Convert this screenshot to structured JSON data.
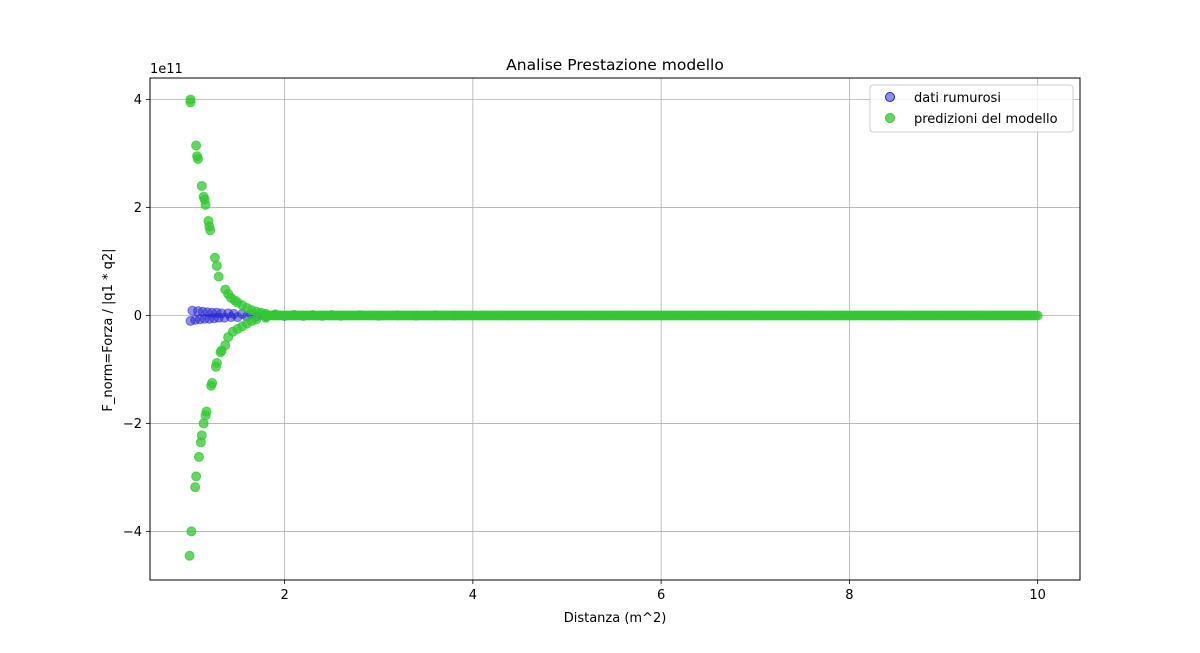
{
  "chart_data": {
    "type": "scatter",
    "title": "Analise Prestazione modello",
    "xlabel": "Distanza (m^2)",
    "ylabel": "F_norm=Forza / |q1 * q2|",
    "y_offset_label": "1e11",
    "xlim": [
      0.57,
      10.45
    ],
    "ylim": [
      -490000000000.0,
      440000000000.0
    ],
    "x_ticks": [
      2,
      4,
      6,
      8,
      10
    ],
    "x_tick_labels": [
      "2",
      "4",
      "6",
      "8",
      "10"
    ],
    "y_ticks": [
      -400000000000.0,
      -200000000000.0,
      0,
      200000000000.0,
      400000000000.0
    ],
    "y_tick_labels": [
      "−4",
      "−2",
      "0",
      "2",
      "4"
    ],
    "grid": true,
    "legend_position": "top-right",
    "series": [
      {
        "name": "dati rumurosi",
        "color": "#1f1fd0",
        "points": [
          [
            1.0,
            -10000000000.0
          ],
          [
            1.02,
            9000000000.0
          ],
          [
            1.05,
            -8000000000.0
          ],
          [
            1.08,
            8000000000.0
          ],
          [
            1.1,
            -7000000000.0
          ],
          [
            1.13,
            7000000000.0
          ],
          [
            1.15,
            -6000000000.0
          ],
          [
            1.18,
            6000000000.0
          ],
          [
            1.2,
            -6000000000.0
          ],
          [
            1.23,
            5000000000.0
          ],
          [
            1.25,
            -5000000000.0
          ],
          [
            1.28,
            5000000000.0
          ],
          [
            1.3,
            -4000000000.0
          ],
          [
            1.33,
            4000000000.0
          ],
          [
            1.36,
            -4000000000.0
          ],
          [
            1.4,
            4000000000.0
          ],
          [
            1.43,
            -3000000000.0
          ],
          [
            1.46,
            3000000000.0
          ],
          [
            1.5,
            -3000000000.0
          ],
          [
            1.55,
            3000000000.0
          ],
          [
            1.6,
            -2000000000.0
          ],
          [
            1.65,
            2000000000.0
          ],
          [
            1.7,
            -2000000000.0
          ],
          [
            1.75,
            1500000000.0
          ],
          [
            1.8,
            -1500000000.0
          ],
          [
            1.9,
            1000000000.0
          ],
          [
            2.0,
            -1000000000.0
          ],
          [
            2.1,
            1000000000.0
          ],
          [
            2.2,
            -800000000.0
          ],
          [
            2.3,
            800000000.0
          ],
          [
            2.4,
            -600000000.0
          ],
          [
            2.5,
            600000000.0
          ],
          [
            2.6,
            -500000000.0
          ],
          [
            2.8,
            400000000.0
          ],
          [
            3.0,
            -400000000.0
          ],
          [
            3.2,
            300000000.0
          ],
          [
            3.4,
            -300000000.0
          ],
          [
            3.6,
            200000000.0
          ],
          [
            3.8,
            -200000000.0
          ]
        ]
      },
      {
        "name": "predizioni del modello",
        "color": "#32c832",
        "points": [
          [
            1.0,
            400000000000.0
          ],
          [
            1.0,
            395000000000.0
          ],
          [
            1.06,
            315000000000.0
          ],
          [
            1.07,
            295000000000.0
          ],
          [
            1.08,
            290000000000.0
          ],
          [
            1.12,
            240000000000.0
          ],
          [
            1.14,
            220000000000.0
          ],
          [
            1.15,
            215000000000.0
          ],
          [
            1.16,
            205000000000.0
          ],
          [
            1.19,
            175000000000.0
          ],
          [
            1.2,
            165000000000.0
          ],
          [
            1.21,
            158000000000.0
          ],
          [
            1.26,
            107000000000.0
          ],
          [
            1.28,
            92000000000.0
          ],
          [
            1.3,
            72000000000.0
          ],
          [
            1.37,
            48000000000.0
          ],
          [
            1.4,
            40000000000.0
          ],
          [
            1.43,
            33000000000.0
          ],
          [
            1.47,
            28000000000.0
          ],
          [
            1.5,
            24000000000.0
          ],
          [
            1.55,
            19000000000.0
          ],
          [
            1.6,
            14000000000.0
          ],
          [
            1.65,
            10000000000.0
          ],
          [
            1.7,
            7000000000.0
          ],
          [
            1.75,
            5000000000.0
          ],
          [
            1.8,
            3000000000.0
          ],
          [
            1.9,
            2000000000.0
          ],
          [
            0.99,
            -445000000000.0
          ],
          [
            1.01,
            -400000000000.0
          ],
          [
            1.05,
            -318000000000.0
          ],
          [
            1.06,
            -298000000000.0
          ],
          [
            1.09,
            -262000000000.0
          ],
          [
            1.11,
            -235000000000.0
          ],
          [
            1.12,
            -222000000000.0
          ],
          [
            1.14,
            -200000000000.0
          ],
          [
            1.16,
            -185000000000.0
          ],
          [
            1.17,
            -178000000000.0
          ],
          [
            1.22,
            -130000000000.0
          ],
          [
            1.23,
            -125000000000.0
          ],
          [
            1.27,
            -95000000000.0
          ],
          [
            1.28,
            -88000000000.0
          ],
          [
            1.32,
            -68000000000.0
          ],
          [
            1.33,
            -65000000000.0
          ],
          [
            1.37,
            -55000000000.0
          ],
          [
            1.4,
            -40000000000.0
          ],
          [
            1.45,
            -30000000000.0
          ],
          [
            1.5,
            -25000000000.0
          ],
          [
            1.55,
            -20000000000.0
          ],
          [
            1.6,
            -15000000000.0
          ],
          [
            1.65,
            -10000000000.0
          ],
          [
            1.7,
            -7000000000.0
          ],
          [
            1.8,
            -4000000000.0
          ]
        ],
        "tail": {
          "x_start": 1.8,
          "x_end": 10.0,
          "y": 0
        }
      }
    ]
  }
}
